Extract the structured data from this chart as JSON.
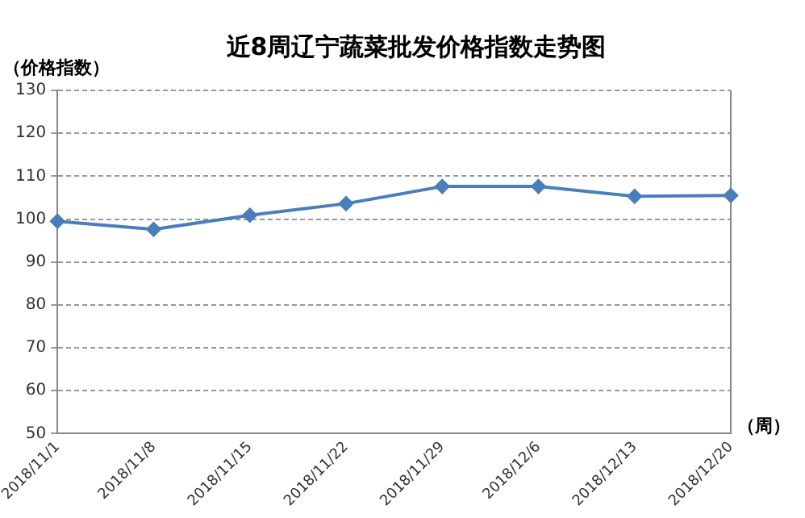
{
  "chart_data": {
    "type": "line",
    "title": "近8周辽宁蔬菜批发价格指数走势图",
    "ylabel": "（价格指数）",
    "xlabel": "（周）",
    "categories": [
      "2018/11/1",
      "2018/11/8",
      "2018/11/15",
      "2018/11/22",
      "2018/11/29",
      "2018/12/6",
      "2018/12/13",
      "2018/12/20"
    ],
    "series": [
      {
        "color": "#4a7ebb",
        "values": [
          99.5,
          97.6,
          100.9,
          103.6,
          107.6,
          107.6,
          105.3,
          105.5
        ]
      }
    ],
    "ylim": [
      50,
      130
    ],
    "yticks": [
      50,
      60,
      70,
      80,
      90,
      100,
      110,
      120,
      130
    ],
    "grid": "y",
    "marker": "diamond",
    "line_style": "solid",
    "legend": false
  }
}
